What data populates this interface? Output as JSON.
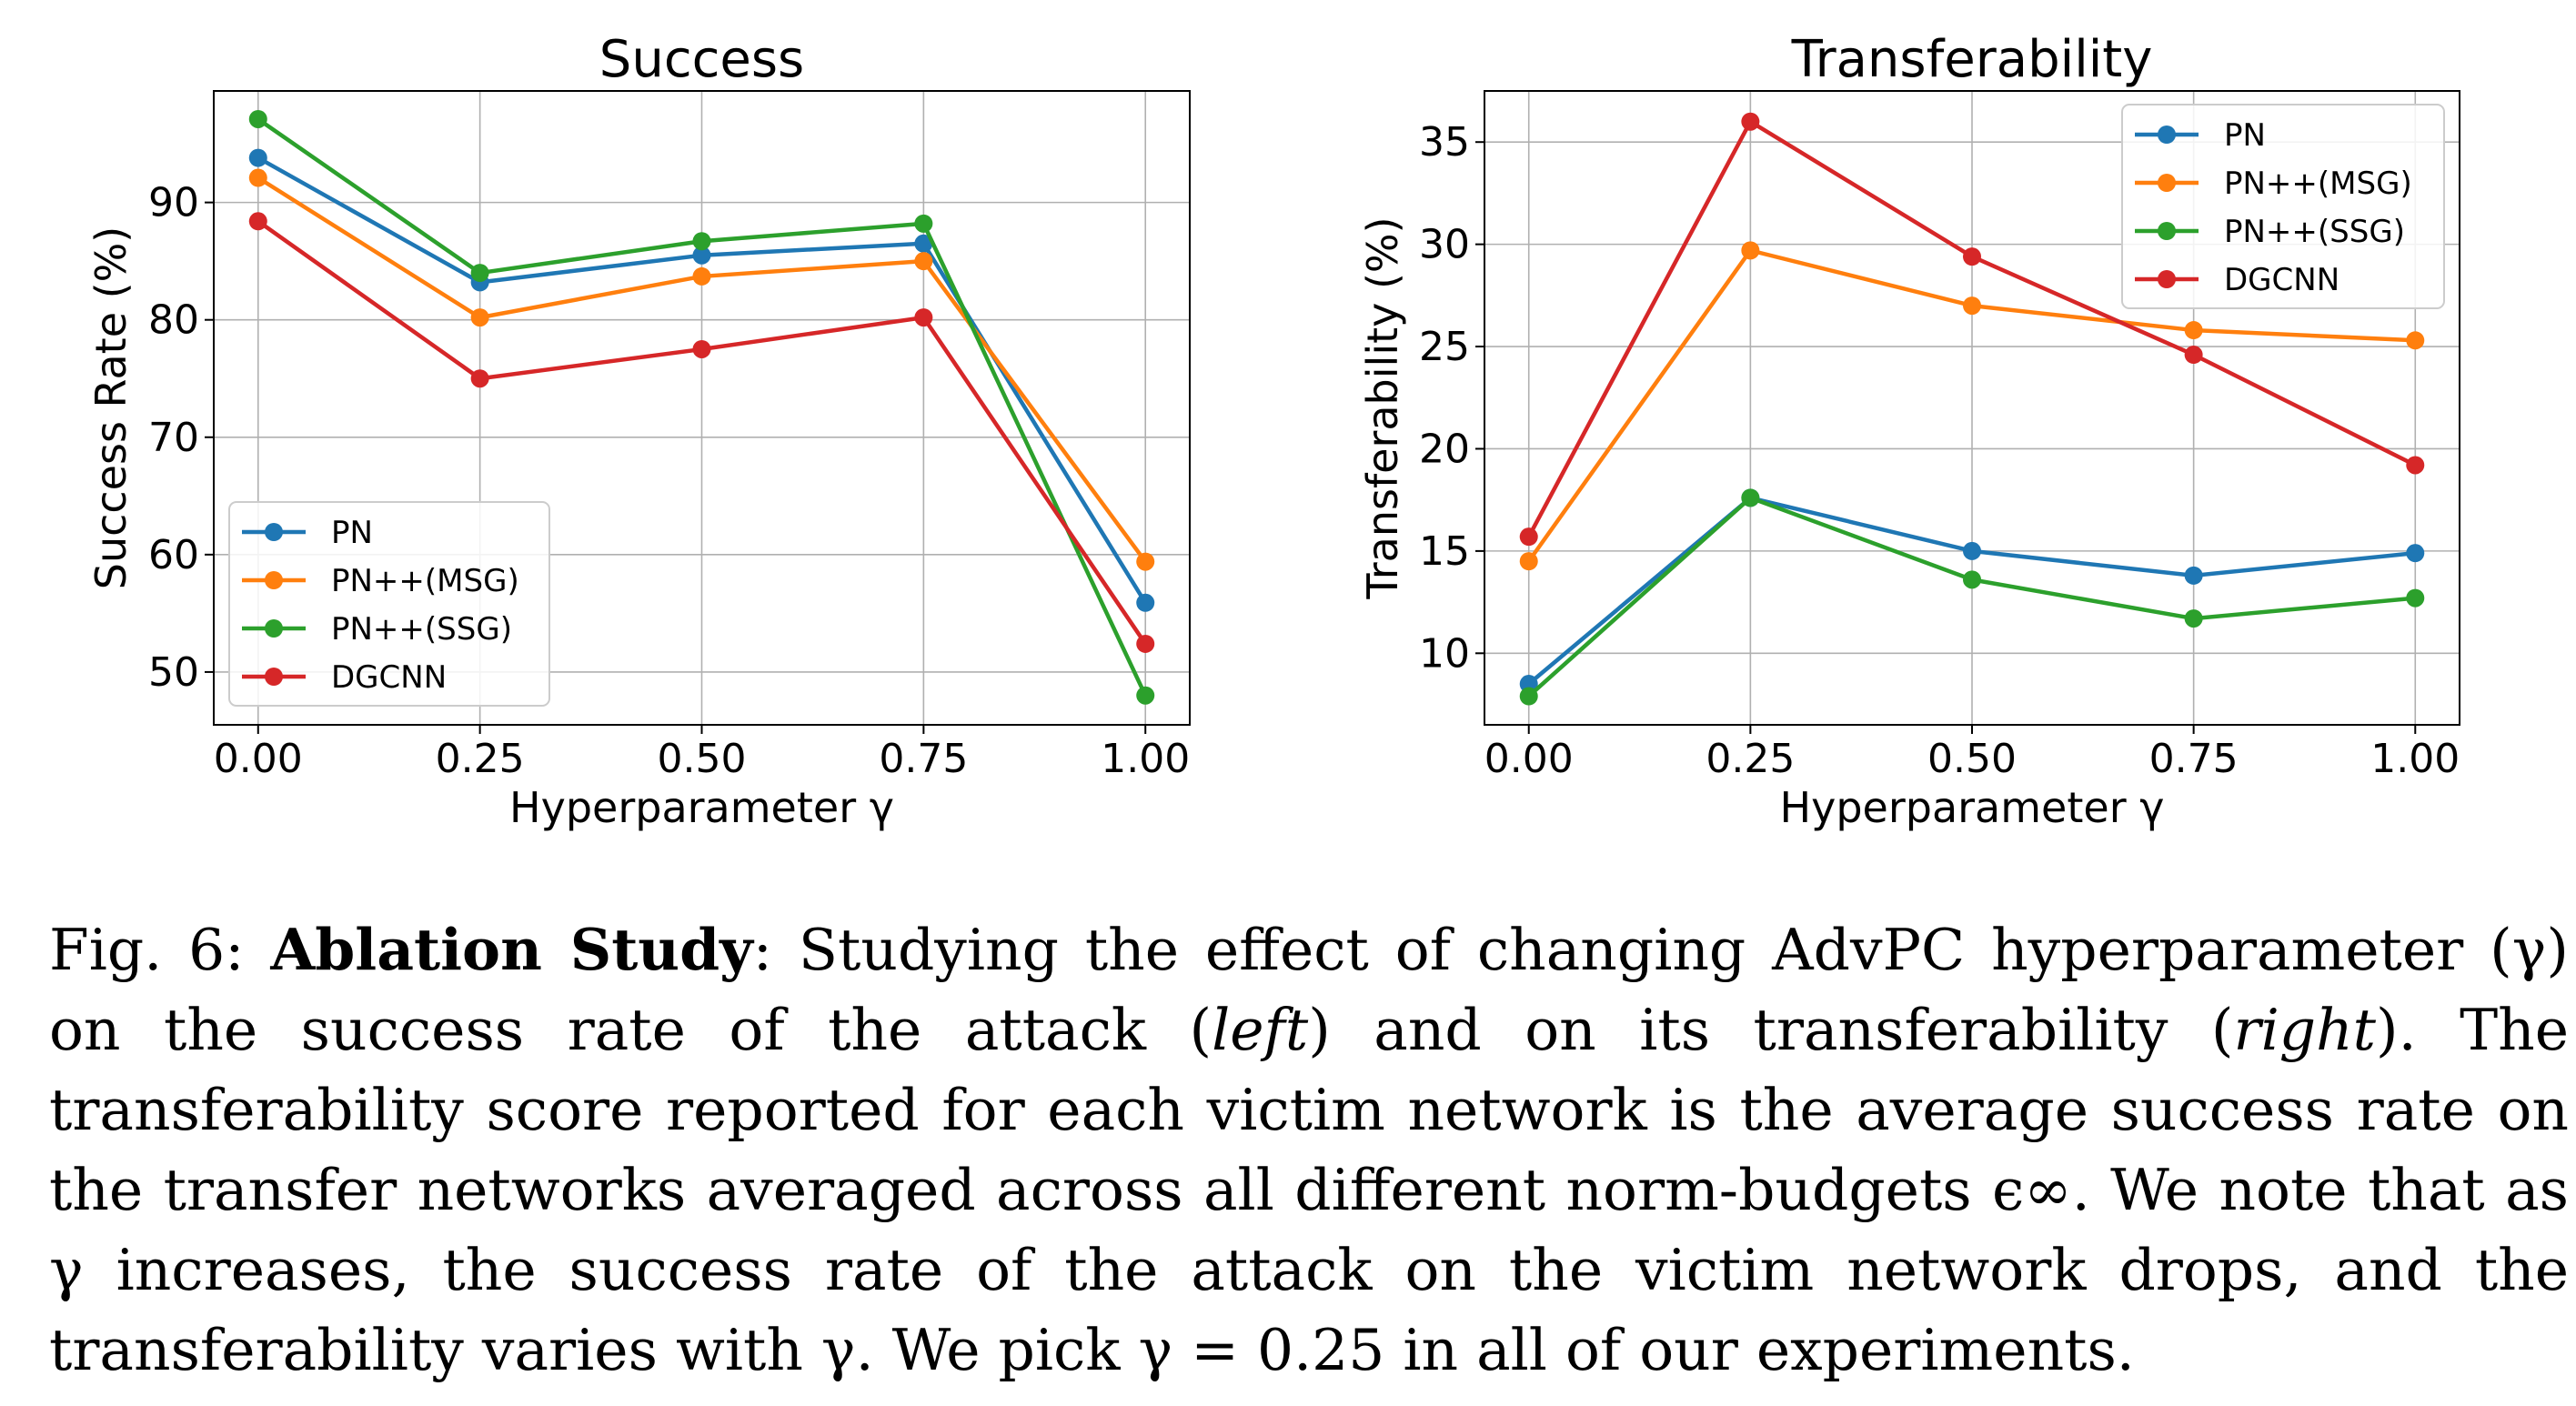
{
  "series_colors": {
    "PN": "#1f77b4",
    "PN++(MSG)": "#ff7f0e",
    "PN++(SSG)": "#2ca02c",
    "DGCNN": "#d62728"
  },
  "chart_data": [
    {
      "type": "line",
      "title": "Success",
      "xlabel": "Hyperparameter γ",
      "ylabel": "Success Rate (%)",
      "x": [
        0.0,
        0.25,
        0.5,
        0.75,
        1.0
      ],
      "x_ticks": [
        "0.00",
        "0.25",
        "0.50",
        "0.75",
        "1.00"
      ],
      "y_ticks": [
        50,
        60,
        70,
        80,
        90
      ],
      "xlim": [
        -0.05,
        1.05
      ],
      "ylim": [
        45.5,
        99.5
      ],
      "grid": true,
      "legend_position": "lower-left",
      "series": [
        {
          "name": "PN",
          "values": [
            93.8,
            83.2,
            85.5,
            86.5,
            55.9
          ]
        },
        {
          "name": "PN++(MSG)",
          "values": [
            92.1,
            80.2,
            83.7,
            85.0,
            59.4
          ]
        },
        {
          "name": "PN++(SSG)",
          "values": [
            97.1,
            84.0,
            86.7,
            88.2,
            48.0
          ]
        },
        {
          "name": "DGCNN",
          "values": [
            88.4,
            75.0,
            77.5,
            80.2,
            52.4
          ]
        }
      ]
    },
    {
      "type": "line",
      "title": "Transferability",
      "xlabel": "Hyperparameter γ",
      "ylabel": "Transferability (%)",
      "x": [
        0.0,
        0.25,
        0.5,
        0.75,
        1.0
      ],
      "x_ticks": [
        "0.00",
        "0.25",
        "0.50",
        "0.75",
        "1.00"
      ],
      "y_ticks": [
        10,
        15,
        20,
        25,
        30,
        35
      ],
      "xlim": [
        -0.05,
        1.05
      ],
      "ylim": [
        6.5,
        37.5
      ],
      "grid": true,
      "legend_position": "upper-right",
      "series": [
        {
          "name": "PN",
          "values": [
            8.5,
            17.6,
            15.0,
            13.8,
            14.9
          ]
        },
        {
          "name": "PN++(MSG)",
          "values": [
            14.5,
            29.7,
            27.0,
            25.8,
            25.3
          ]
        },
        {
          "name": "PN++(SSG)",
          "values": [
            7.9,
            17.6,
            13.6,
            11.7,
            12.7
          ]
        },
        {
          "name": "DGCNN",
          "values": [
            15.7,
            36.0,
            29.4,
            24.6,
            19.2
          ]
        }
      ]
    }
  ],
  "caption": {
    "fig_label": "Fig. 6:",
    "bold_title": "Ablation Study",
    "part1": ": Studying the effect of changing AdvPC hyperparameter (γ) on the success rate of the attack (",
    "left_word": "left",
    "part2": ") and on its transferability (",
    "right_word": "right",
    "part3": "). The transferability score reported for each victim network is the average success rate on the transfer networks averaged across all different norm-budgets ϵ∞. We note that as γ increases, the success rate of the attack on the victim network drops, and the transferability varies with γ. We pick γ = 0.25 in all of our experiments."
  }
}
